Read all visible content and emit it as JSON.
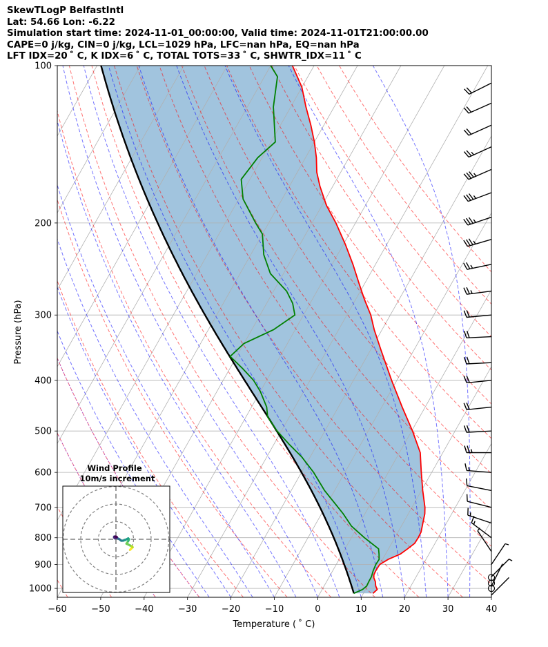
{
  "header": {
    "line1": "SkewTLogP BelfastIntl",
    "line2": "Lat: 54.66   Lon: -6.22",
    "line3": "Simulation start time: 2024-11-01_00:00:00, Valid time: 2024-11-01T21:00:00.00",
    "line4": "CAPE=0 j/kg, CIN=0 j/kg, LCL=1029 hPa, LFC=nan hPa, EQ=nan hPa",
    "line5": "LFT IDX=20 ˚ C, K IDX=6 ˚ C, TOTAL TOTS=33 ˚ C, SHWTR_IDX=11 ˚ C"
  },
  "chart_data": {
    "type": "line",
    "title": "SkewTLogP BelfastIntl",
    "xlabel": "Temperature ( ˚ C)",
    "ylabel": "Pressure (hPa)",
    "xlim": [
      -60,
      40
    ],
    "ylim": [
      1040,
      100
    ],
    "xticks": [
      -60,
      -50,
      -40,
      -30,
      -20,
      -10,
      0,
      10,
      20,
      30,
      40
    ],
    "xtick_labels": [
      "−60",
      "−50",
      "−40",
      "−30",
      "−20",
      "−10",
      "0",
      "10",
      "20",
      "30",
      "40"
    ],
    "yticks": [
      1000,
      900,
      800,
      700,
      600,
      500,
      400,
      300,
      200,
      100
    ],
    "ytick_labels": [
      "1000",
      "900",
      "800",
      "700",
      "600",
      "500",
      "400",
      "300",
      "200",
      "100"
    ],
    "grid": true,
    "skew_deg_per_log10": 68,
    "isotherm_step_c": 10,
    "dry_adiabats_theta_c": [
      -60,
      -50,
      -40,
      -30,
      -20,
      -10,
      0,
      10,
      20,
      30,
      40,
      50,
      60,
      70,
      80,
      90,
      100,
      110,
      120,
      130
    ],
    "moist_adiabats_start_c": [
      -25,
      -20,
      -15,
      -10,
      -5,
      0,
      5,
      10,
      15,
      20,
      25,
      30,
      35
    ],
    "mixing_ratio_reference_c": [
      -40,
      -30
    ],
    "series": [
      {
        "name": "Temperature",
        "color": "#ff0000",
        "points": [
          [
            1022,
            12.2
          ],
          [
            1005,
            12.7
          ],
          [
            990,
            11.9
          ],
          [
            970,
            11.2
          ],
          [
            955,
            10.4
          ],
          [
            942,
            10.0
          ],
          [
            925,
            9.9
          ],
          [
            900,
            10.0
          ],
          [
            880,
            11.3
          ],
          [
            860,
            13.4
          ],
          [
            840,
            14.4
          ],
          [
            820,
            15.3
          ],
          [
            800,
            15.4
          ],
          [
            780,
            15.3
          ],
          [
            760,
            14.8
          ],
          [
            740,
            14.3
          ],
          [
            720,
            13.8
          ],
          [
            700,
            13.0
          ],
          [
            650,
            10.3
          ],
          [
            600,
            7.6
          ],
          [
            550,
            4.8
          ],
          [
            500,
            0.2
          ],
          [
            450,
            -5.3
          ],
          [
            400,
            -11.2
          ],
          [
            350,
            -17.6
          ],
          [
            320,
            -21.8
          ],
          [
            300,
            -24.5
          ],
          [
            280,
            -28.0
          ],
          [
            260,
            -31.5
          ],
          [
            240,
            -35.2
          ],
          [
            220,
            -39.5
          ],
          [
            200,
            -44.5
          ],
          [
            185,
            -49.0
          ],
          [
            170,
            -53.0
          ],
          [
            160,
            -55.5
          ],
          [
            150,
            -57.5
          ],
          [
            140,
            -60.0
          ],
          [
            130,
            -63.0
          ],
          [
            120,
            -66.5
          ],
          [
            110,
            -70.0
          ],
          [
            100,
            -75.0
          ]
        ]
      },
      {
        "name": "Dewpoint",
        "color": "#008000",
        "points": [
          [
            1022,
            7.8
          ],
          [
            1005,
            9.3
          ],
          [
            990,
            9.8
          ],
          [
            970,
            9.7
          ],
          [
            950,
            9.7
          ],
          [
            925,
            9.3
          ],
          [
            900,
            9.1
          ],
          [
            880,
            9.2
          ],
          [
            860,
            8.5
          ],
          [
            840,
            7.7
          ],
          [
            800,
            3.0
          ],
          [
            760,
            -1.5
          ],
          [
            720,
            -5.0
          ],
          [
            700,
            -7.0
          ],
          [
            650,
            -12.3
          ],
          [
            600,
            -17.2
          ],
          [
            560,
            -22.0
          ],
          [
            530,
            -26.5
          ],
          [
            500,
            -31.0
          ],
          [
            470,
            -35.0
          ],
          [
            450,
            -36.5
          ],
          [
            420,
            -40.0
          ],
          [
            400,
            -43.0
          ],
          [
            380,
            -47.0
          ],
          [
            360,
            -51.5
          ],
          [
            340,
            -50.0
          ],
          [
            320,
            -45.0
          ],
          [
            300,
            -42.0
          ],
          [
            285,
            -44.0
          ],
          [
            270,
            -47.0
          ],
          [
            250,
            -53.0
          ],
          [
            230,
            -57.0
          ],
          [
            210,
            -60.0
          ],
          [
            200,
            -63.0
          ],
          [
            180,
            -69.0
          ],
          [
            165,
            -72.0
          ],
          [
            150,
            -71.0
          ],
          [
            140,
            -69.0
          ],
          [
            120,
            -74.0
          ],
          [
            105,
            -77.0
          ],
          [
            100,
            -80.0
          ]
        ]
      }
    ],
    "parcel_profile": {
      "name": "Parcel",
      "color": "#000000",
      "start_pressure_hpa": 1022,
      "start_temp_c": 7.8
    },
    "cape_cin_shading": {
      "color": "#a1c4de"
    },
    "wind_barbs": [
      {
        "p": 1030,
        "u": 1,
        "v": 1
      },
      {
        "p": 990,
        "u": 1,
        "v": 2
      },
      {
        "p": 950,
        "u": 2,
        "v": 2
      },
      {
        "p": 900,
        "u": 2,
        "v": 3
      },
      {
        "p": 850,
        "u": -2,
        "v": 3
      },
      {
        "p": 800,
        "u": -4,
        "v": 3
      },
      {
        "p": 750,
        "u": -6,
        "v": 2
      },
      {
        "p": 700,
        "u": -8,
        "v": 2
      },
      {
        "p": 650,
        "u": -10,
        "v": 2
      },
      {
        "p": 600,
        "u": -13,
        "v": 1
      },
      {
        "p": 550,
        "u": -16,
        "v": 0
      },
      {
        "p": 500,
        "u": -18,
        "v": -1
      },
      {
        "p": 450,
        "u": -19,
        "v": -2
      },
      {
        "p": 400,
        "u": -20,
        "v": -2
      },
      {
        "p": 370,
        "u": -20,
        "v": -1
      },
      {
        "p": 330,
        "u": -21,
        "v": -1
      },
      {
        "p": 300,
        "u": -22,
        "v": -2
      },
      {
        "p": 270,
        "u": -23,
        "v": -3
      },
      {
        "p": 240,
        "u": -24,
        "v": -5
      },
      {
        "p": 215,
        "u": -24,
        "v": -7
      },
      {
        "p": 195,
        "u": -24,
        "v": -8
      },
      {
        "p": 175,
        "u": -24,
        "v": -9
      },
      {
        "p": 158,
        "u": -23,
        "v": -10
      },
      {
        "p": 143,
        "u": -22,
        "v": -10
      },
      {
        "p": 130,
        "u": -20,
        "v": -9
      },
      {
        "p": 118,
        "u": -18,
        "v": -8
      },
      {
        "p": 108,
        "u": -16,
        "v": -8
      }
    ],
    "calm_wind_pressures": [
      1000,
      977,
      953
    ],
    "hodograph": {
      "title_line1": "Wind Profile",
      "title_line2": "10m/s increment",
      "ring_increment_ms": 10,
      "rings": [
        10,
        20,
        30
      ],
      "points": [
        [
          8,
          -6
        ],
        [
          8.5,
          -5.5
        ],
        [
          9,
          -5
        ],
        [
          9.5,
          -4.5
        ],
        [
          9,
          -4
        ],
        [
          8,
          -3.5
        ],
        [
          7,
          -3
        ],
        [
          6,
          -2.5
        ],
        [
          7,
          -1
        ],
        [
          7.5,
          0
        ],
        [
          7,
          0.5
        ],
        [
          6,
          0
        ],
        [
          5,
          -0.5
        ],
        [
          4,
          -0.8
        ],
        [
          3,
          -0.8
        ],
        [
          2,
          0
        ],
        [
          1,
          0.5
        ],
        [
          0,
          1
        ],
        [
          -0.5,
          1.5
        ],
        [
          -1,
          1.5
        ],
        [
          -1,
          1
        ],
        [
          -0.5,
          0.5
        ],
        [
          0,
          0.8
        ],
        [
          0.5,
          1.2
        ],
        [
          0,
          1.5
        ],
        [
          -0.5,
          1.6
        ]
      ]
    }
  }
}
